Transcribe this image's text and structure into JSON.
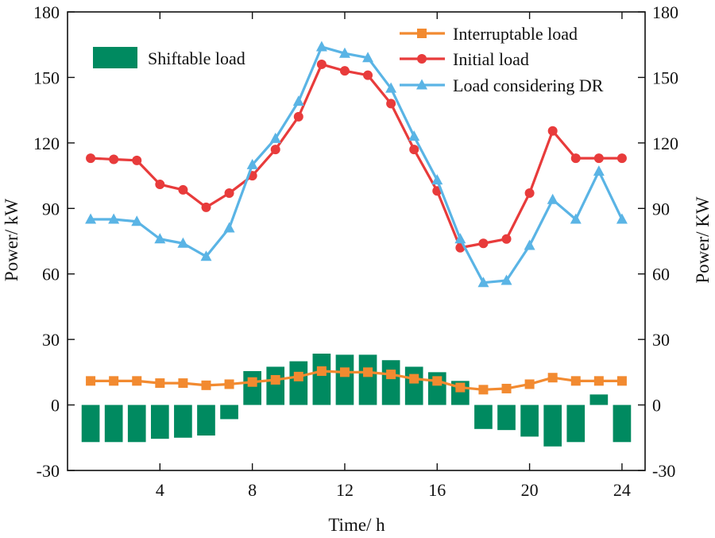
{
  "chart_data": {
    "type": "bar+line",
    "xlabel": "Time/ h",
    "ylabel_left": "Power/ kW",
    "ylabel_right": "Power/ KW",
    "xlim": [
      0,
      25
    ],
    "ylim": [
      -30,
      180
    ],
    "xticks": [
      4,
      8,
      12,
      16,
      20,
      24
    ],
    "yticks": [
      -30,
      0,
      30,
      60,
      90,
      120,
      150,
      180
    ],
    "grid": false,
    "x": [
      1,
      2,
      3,
      4,
      5,
      6,
      7,
      8,
      9,
      10,
      11,
      12,
      13,
      14,
      15,
      16,
      17,
      18,
      19,
      20,
      21,
      22,
      23,
      24
    ],
    "bars": {
      "name": "Shiftable load",
      "color": "#008a60",
      "values": [
        -17,
        -17,
        -17,
        -15.5,
        -15,
        -14,
        -6.5,
        15.5,
        17.5,
        20,
        23.5,
        23,
        23,
        20.5,
        17.5,
        15,
        11,
        -11,
        -11.5,
        -14.5,
        -19,
        -17,
        4.8,
        -17
      ]
    },
    "series": [
      {
        "name": "Interruptable load",
        "color": "#f28a30",
        "marker": "square",
        "values": [
          11,
          11,
          11,
          10,
          10,
          9,
          9.5,
          10.5,
          11.5,
          13,
          15.5,
          15,
          15,
          14,
          12,
          11,
          8,
          7,
          7.5,
          9.5,
          12.5,
          11,
          11,
          11
        ]
      },
      {
        "name": "Initial load",
        "color": "#e83b3b",
        "marker": "circle",
        "values": [
          113,
          112.5,
          112,
          101,
          98.5,
          90.5,
          97,
          105,
          117,
          132,
          156,
          153,
          151,
          138,
          117,
          98,
          72,
          74,
          76,
          97,
          125.5,
          113,
          113,
          113
        ]
      },
      {
        "name": "Load considering DR",
        "color": "#5ab4e5",
        "marker": "triangle",
        "values": [
          85,
          85,
          84,
          76,
          74,
          68,
          81,
          110,
          122,
          139,
          164,
          161,
          159,
          145,
          123,
          103,
          76,
          56,
          57,
          73,
          94,
          85,
          107,
          85
        ]
      }
    ],
    "legend": [
      {
        "label": "Interruptable load",
        "series": "Interruptable load"
      },
      {
        "label": "Initial load",
        "series": "Initial load"
      },
      {
        "label": "Load considering DR",
        "series": "Load considering DR"
      },
      {
        "label": "Shiftable load",
        "series": "Shiftable load"
      }
    ],
    "legend_placement": "top"
  }
}
